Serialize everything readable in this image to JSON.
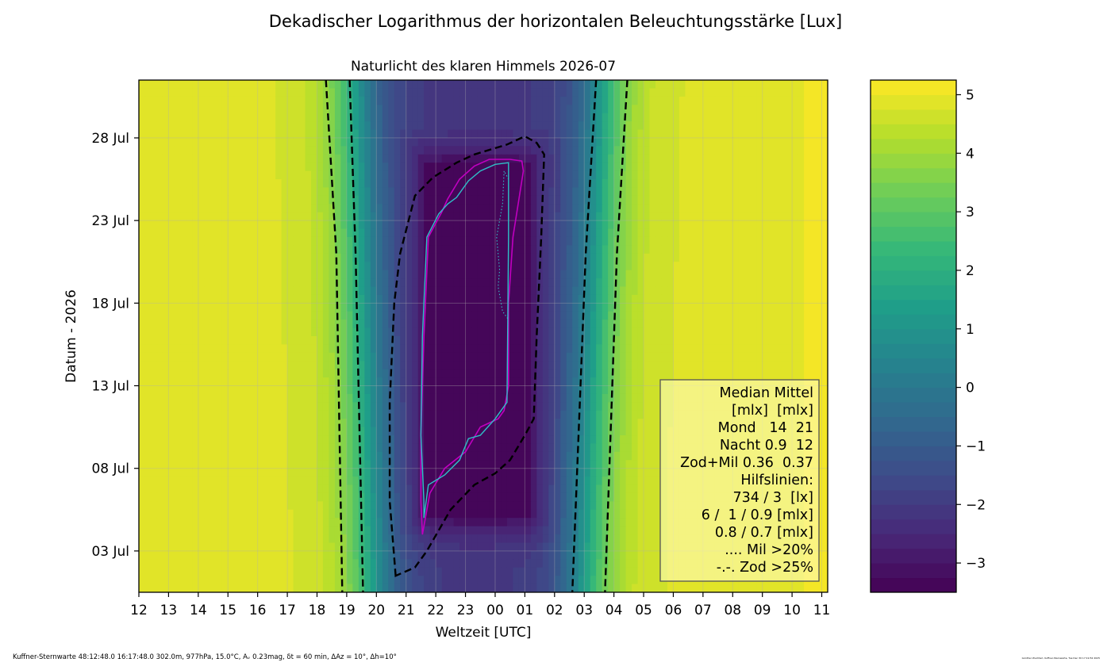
{
  "chart_data": {
    "type": "heatmap",
    "suptitle": "Dekadischer Logarithmus der horizontalen Beleuchtungsstärke [Lux]",
    "title": "Naturlicht des klaren Himmels 2026-07",
    "xlabel": "Weltzeit [UTC]",
    "ylabel": "Datum - 2026",
    "x_ticks": [
      "12",
      "13",
      "14",
      "15",
      "16",
      "17",
      "18",
      "19",
      "20",
      "21",
      "22",
      "23",
      "00",
      "01",
      "02",
      "03",
      "04",
      "05",
      "06",
      "07",
      "08",
      "09",
      "10",
      "11"
    ],
    "y_ticks": [
      "28 Jul",
      "23 Jul",
      "18 Jul",
      "13 Jul",
      "08 Jul",
      "03 Jul"
    ],
    "y_tick_days": [
      28,
      23,
      18,
      13,
      8,
      3
    ],
    "x_range_hours_since_12utc": [
      0,
      23.2
    ],
    "y_range_day_of_july": [
      0.5,
      31.5
    ],
    "grid": true,
    "colormap": "viridis",
    "colorbar": {
      "range": [
        -3.5,
        5.25
      ],
      "ticks": [
        "5",
        "4",
        "3",
        "2",
        "1",
        "0",
        "−1",
        "−2",
        "−3"
      ],
      "tick_values": [
        5,
        4,
        3,
        2,
        1,
        0,
        -1,
        -2,
        -3
      ],
      "levels": 35
    },
    "field_profile": {
      "day_plateau": 4.8,
      "night_floor": -2.1,
      "sunset_midpoint_utc_hours_since_12": {
        "day1": 7.9,
        "day31": 7.3
      },
      "sunrise_midpoint_utc_hours_since_12": {
        "day1": 15.0,
        "day31": 15.6
      },
      "moonlit_dark_core": -3.3
    },
    "contours": {
      "black_dashed_outer_left": {
        "x": [
          6.3,
          6.65,
          6.85
        ],
        "y": [
          31.5,
          21,
          0.5
        ]
      },
      "black_dashed_inner_left": {
        "x": [
          7.1,
          7.3,
          7.55
        ],
        "y": [
          31.5,
          21,
          0.5
        ]
      },
      "black_dashed_outer_right": {
        "x": [
          16.45,
          16.1,
          15.7
        ],
        "y": [
          31.5,
          21,
          0.5
        ]
      },
      "black_dashed_inner_right": {
        "x": [
          15.4,
          15.05,
          14.6
        ],
        "y": [
          31.5,
          21,
          0.5
        ]
      },
      "black_dashed_loop": {
        "x": [
          8.65,
          8.45,
          8.45,
          8.6,
          8.8,
          9.3,
          9.9,
          10.7,
          11.3,
          11.85,
          12.4,
          13.0,
          13.4,
          13.65,
          13.55,
          13.4,
          13.3,
          13.0,
          12.5,
          12.0,
          11.3,
          10.5,
          9.7,
          9.3,
          8.65
        ],
        "y": [
          1.5,
          6,
          12,
          18,
          21,
          24.5,
          25.6,
          26.5,
          27.0,
          27.3,
          27.6,
          28.1,
          27.7,
          27.0,
          22,
          16,
          11,
          10,
          8.5,
          7.7,
          7.0,
          5.5,
          3.0,
          2.0,
          1.5
        ]
      },
      "magenta": {
        "x": [
          9.55,
          9.5,
          9.5,
          9.6,
          9.75,
          10.2,
          10.4,
          10.8,
          11.3,
          11.8,
          12.5,
          12.9,
          12.95,
          12.6,
          12.45,
          12.45,
          12.3,
          12.1,
          11.5,
          11.0,
          10.3,
          9.8,
          9.55
        ],
        "y": [
          4,
          6,
          10,
          16,
          22,
          23.5,
          24.3,
          25.5,
          26.3,
          26.7,
          26.7,
          26.6,
          26.0,
          22,
          18,
          13,
          11.5,
          11.0,
          10.5,
          9.0,
          8.0,
          6.5,
          4
        ]
      },
      "cyan": {
        "x": [
          9.6,
          9.6,
          9.5,
          9.55,
          9.7,
          10.1,
          10.4,
          10.7,
          11.1,
          11.5,
          12.0,
          12.45,
          12.45,
          12.4,
          12.0,
          11.5,
          11.1,
          10.8,
          10.3,
          9.75,
          9.6
        ],
        "y": [
          5,
          6,
          10,
          16,
          22,
          23.4,
          24,
          24.4,
          25.4,
          26.0,
          26.4,
          26.5,
          22,
          12,
          11,
          10,
          9.8,
          8.5,
          7.6,
          7.0,
          5
        ]
      },
      "cyan_dotted": {
        "x": [
          12.45,
          12.3,
          12.25,
          12.05,
          12.15,
          12.1,
          12.25,
          12.45
        ],
        "y": [
          25.5,
          26.0,
          24.0,
          22.0,
          20.0,
          19.0,
          17.5,
          17.0
        ]
      }
    },
    "legend_lines": [
      "Median Mittel",
      "[mlx]  [mlx]",
      "Mond   14  21",
      "Nacht 0.9  12",
      "Zod+Mil 0.36  0.37",
      "Hilfslinien:",
      "734 / 3  [lx]",
      "6 /  1 / 0.9 [mlx]",
      "0.8 / 0.7 [mlx]",
      ".... Mil >20%",
      "-.-. Zod >25%"
    ],
    "legend_placement": "lower-right"
  },
  "footer_left": "Kuffner-Sternwarte 48:12:48.0 16:17:48.0 302.0m,  977hPa, 15.0°C, Aᵥ 0.23mag, δt = 60 min, ΔAz = 10°, Δh=10°",
  "footer_right": "Günther Wuchterl, Kuffner-Sternwarte, Tue Dec 30 17:19:52 2025"
}
